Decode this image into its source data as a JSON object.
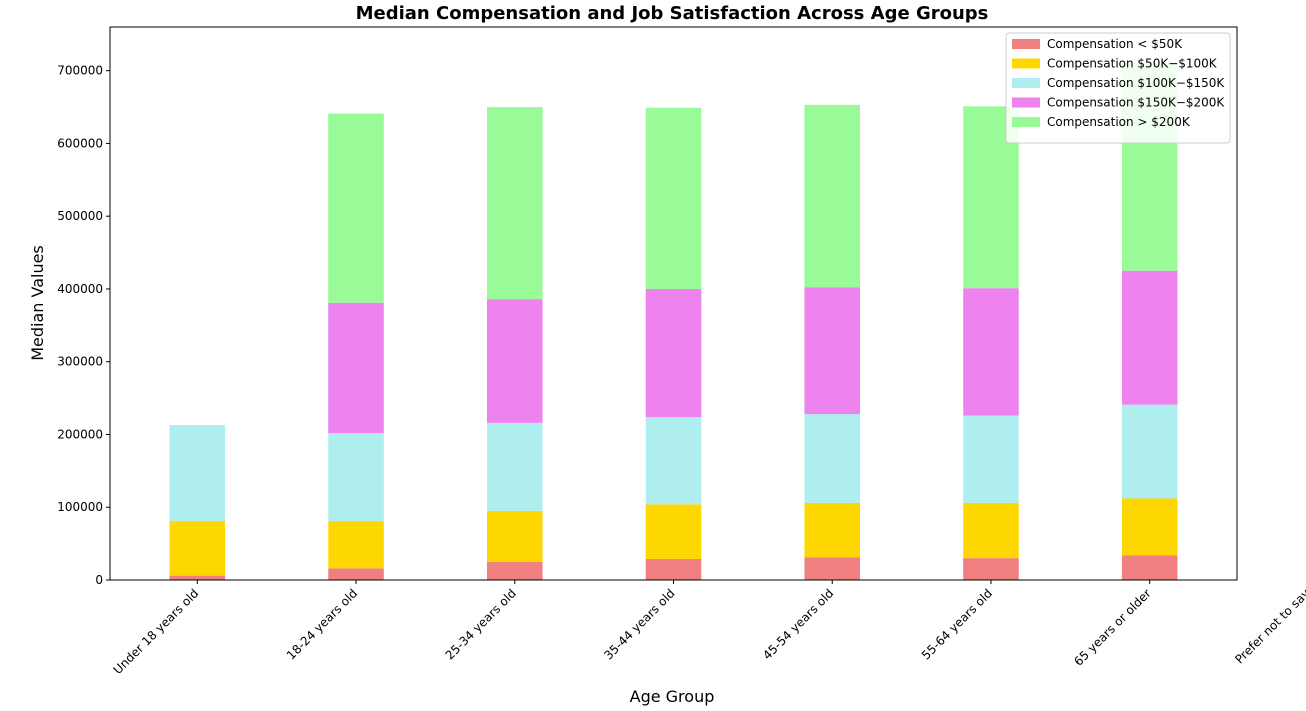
{
  "chart_data": {
    "type": "bar",
    "stacked": true,
    "title": "Median Compensation and Job Satisfaction Across Age Groups",
    "xlabel": "Age Group",
    "ylabel": "Median Values",
    "ylim": [
      0,
      760000
    ],
    "yticks": [
      0,
      100000,
      200000,
      300000,
      400000,
      500000,
      600000,
      700000
    ],
    "ytick_labels": [
      "0",
      "100000",
      "200000",
      "300000",
      "400000",
      "500000",
      "600000",
      "700000"
    ],
    "grid": false,
    "legend_position": "top-right",
    "categories": [
      "Under 18 years old",
      "18-24 years old",
      "25-34 years old",
      "35-44 years old",
      "45-54 years old",
      "55-64 years old",
      "65 years or older",
      "Prefer not to say"
    ],
    "series": [
      {
        "name": "Compensation < $50K",
        "color": "#f08080",
        "values": [
          6000,
          16000,
          25000,
          29000,
          31000,
          30000,
          34000,
          0
        ]
      },
      {
        "name": "Compensation $50K−$100K",
        "color": "#ffd700",
        "values": [
          75000,
          65000,
          70000,
          75000,
          75000,
          76000,
          78000,
          0
        ]
      },
      {
        "name": "Compensation $100K−$150K",
        "color": "#afeeee",
        "values": [
          132000,
          121000,
          121000,
          120000,
          122000,
          120000,
          129000,
          0
        ]
      },
      {
        "name": "Compensation $150K−$200K",
        "color": "#ee82ee",
        "values": [
          0,
          179000,
          170000,
          176000,
          174000,
          175000,
          184000,
          0
        ]
      },
      {
        "name": "Compensation > $200K",
        "color": "#98fb98",
        "values": [
          0,
          260000,
          264000,
          249000,
          251000,
          250000,
          285000,
          0
        ]
      }
    ]
  }
}
